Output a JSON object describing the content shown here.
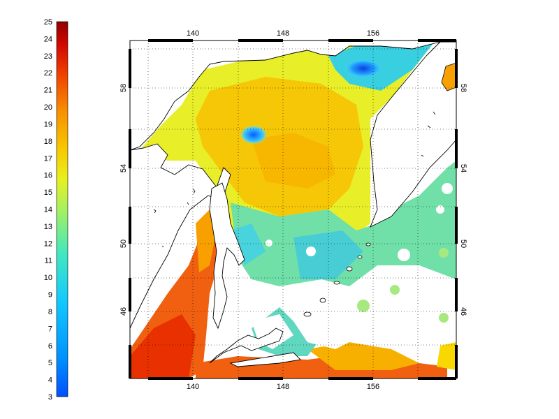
{
  "colorbar": {
    "min": 3,
    "max": 25,
    "labels": [
      "25",
      "24",
      "23",
      "22",
      "21",
      "20",
      "19",
      "18",
      "17",
      "16",
      "15",
      "14",
      "13",
      "12",
      "11",
      "10",
      "9",
      "8",
      "7",
      "6",
      "5",
      "4",
      "3"
    ]
  },
  "map": {
    "projection": "lon-lat",
    "lon_range": [
      135,
      165
    ],
    "lat_range": [
      42.5,
      60.5
    ],
    "grid": "dotted",
    "top_lon_labels": [
      "140",
      "148",
      "156"
    ],
    "bottom_lon_labels": [
      "140",
      "148",
      "156"
    ],
    "left_lat_labels": [
      "58",
      "54",
      "50",
      "46"
    ],
    "right_lat_labels": [
      "58",
      "54",
      "50",
      "46"
    ]
  },
  "colors": {
    "land": "#ffffff",
    "coast": "#000000",
    "frame": "#000000",
    "scale": [
      "#0050ff",
      "#0088ff",
      "#00b8ff",
      "#20d8e0",
      "#60e8b0",
      "#9ef070",
      "#d8f040",
      "#f8e800",
      "#f8c000",
      "#f89800",
      "#f06000",
      "#e83000",
      "#c00000",
      "#900000"
    ]
  }
}
